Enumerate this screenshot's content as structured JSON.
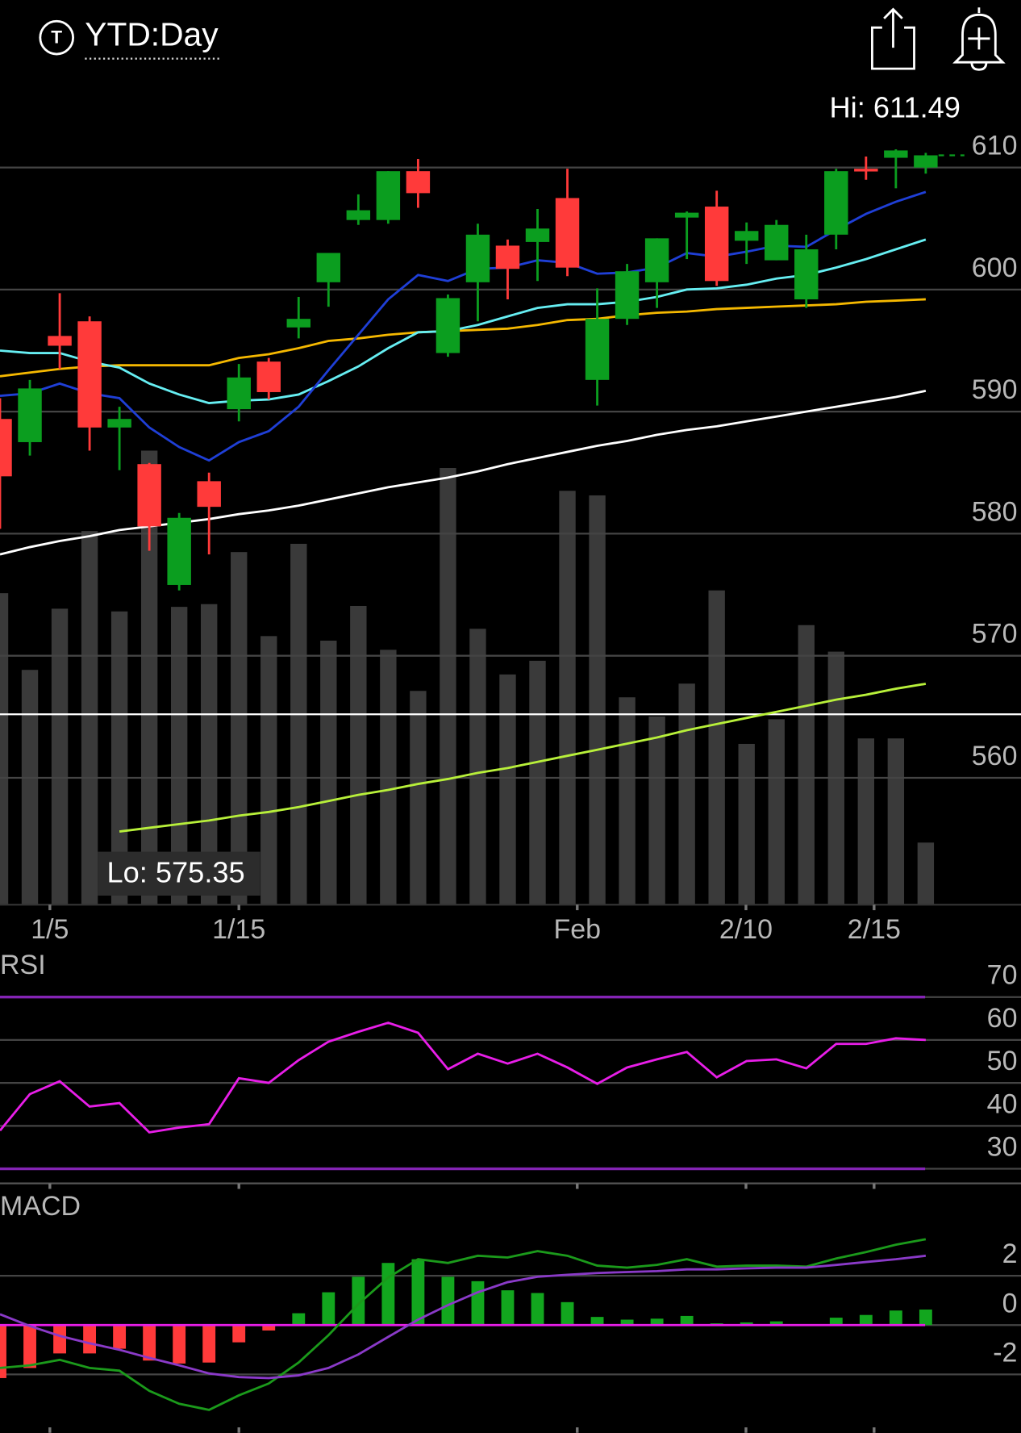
{
  "header": {
    "badge": "T",
    "period": "YTD:Day"
  },
  "chart_data": [
    {
      "type": "candlestick",
      "xlim": [
        0,
        34.19
      ],
      "xticks": [
        {
          "value": 1.67,
          "label": "1/5"
        },
        {
          "value": 8.0,
          "label": "1/15"
        },
        {
          "value": 19.33,
          "label": "Feb"
        },
        {
          "value": 24.98,
          "label": "2/10"
        },
        {
          "value": 29.27,
          "label": "2/15"
        }
      ],
      "ylim": [
        549.6,
        616.6
      ],
      "yticks": [
        560,
        570,
        580,
        590,
        600,
        610
      ],
      "up_color": "#0b9e1f",
      "down_color": "#ff3a3a",
      "open": [
        589.4,
        587.5,
        596.2,
        597.4,
        588.7,
        585.7,
        575.8,
        584.3,
        590.2,
        594.1,
        596.9,
        600.6,
        605.7,
        605.7,
        609.7,
        594.8,
        600.6,
        603.6,
        603.9,
        607.5,
        592.6,
        597.6,
        600.6,
        605.9,
        606.8,
        604.0,
        602.4,
        599.2,
        604.5,
        609.9,
        610.8,
        610.0
      ],
      "high": [
        591.1,
        592.6,
        599.7,
        597.8,
        590.4,
        585.8,
        581.7,
        585.0,
        593.9,
        594.4,
        599.4,
        603.0,
        607.8,
        609.7,
        610.7,
        599.6,
        605.4,
        604.1,
        606.6,
        609.9,
        600.1,
        602.1,
        604.2,
        606.4,
        608.1,
        605.5,
        605.7,
        604.5,
        609.9,
        610.9,
        611.49,
        611.2
      ],
      "low": [
        580.4,
        586.4,
        593.5,
        586.8,
        585.2,
        578.6,
        575.35,
        578.3,
        589.2,
        591.0,
        596.0,
        598.6,
        605.3,
        605.4,
        606.7,
        594.5,
        597.4,
        599.2,
        600.7,
        601.1,
        590.5,
        597.1,
        598.5,
        602.5,
        600.3,
        602.1,
        602.4,
        598.5,
        603.3,
        609.0,
        608.3,
        609.5
      ],
      "close": [
        584.7,
        591.9,
        595.4,
        588.7,
        589.4,
        580.6,
        581.3,
        582.2,
        592.8,
        591.6,
        597.6,
        603.0,
        606.5,
        609.7,
        607.9,
        599.3,
        604.5,
        601.7,
        605.0,
        601.8,
        597.6,
        601.5,
        604.2,
        606.3,
        600.7,
        604.8,
        605.3,
        603.3,
        609.7,
        609.7,
        611.4,
        611.0
      ],
      "overlays": [
        {
          "color": "#ffffff",
          "values": [
            578.3,
            578.9,
            579.4,
            579.8,
            580.3,
            580.6,
            580.9,
            581.2,
            581.6,
            581.9,
            582.3,
            582.8,
            583.3,
            583.8,
            584.2,
            584.6,
            585.1,
            585.7,
            586.2,
            586.7,
            587.2,
            587.6,
            588.1,
            588.5,
            588.8,
            589.2,
            589.6,
            590.0,
            590.4,
            590.8,
            591.2,
            591.7
          ]
        },
        {
          "color": "#b8f03a",
          "values": [
            null,
            null,
            null,
            null,
            555.6,
            555.9,
            556.2,
            556.5,
            556.9,
            557.2,
            557.6,
            558.1,
            558.6,
            559.0,
            559.5,
            559.9,
            560.4,
            560.8,
            561.3,
            561.8,
            562.3,
            562.8,
            563.3,
            563.9,
            564.4,
            564.9,
            565.4,
            565.9,
            566.4,
            566.8,
            567.3,
            567.7
          ]
        },
        {
          "color": "#f5b800",
          "values": [
            592.9,
            593.2,
            593.5,
            593.7,
            593.8,
            593.8,
            593.8,
            593.8,
            594.4,
            594.7,
            595.2,
            595.8,
            596.0,
            596.3,
            596.5,
            596.6,
            596.7,
            596.8,
            597.1,
            597.5,
            597.6,
            597.9,
            598.1,
            598.2,
            598.4,
            598.5,
            598.6,
            598.7,
            598.8,
            599.0,
            599.1,
            599.2
          ]
        },
        {
          "color": "#66eef2",
          "values": [
            595.0,
            594.8,
            594.8,
            594.1,
            593.6,
            592.3,
            591.4,
            590.7,
            590.9,
            591.0,
            591.4,
            592.5,
            593.7,
            595.2,
            596.5,
            596.6,
            597.1,
            597.8,
            598.5,
            598.8,
            598.8,
            599.0,
            599.4,
            600.0,
            600.1,
            600.4,
            600.9,
            601.2,
            601.8,
            602.5,
            603.3,
            604.1
          ]
        },
        {
          "color": "#1f3fd6",
          "values": [
            591.3,
            591.5,
            592.3,
            591.5,
            591.1,
            588.7,
            587.1,
            586.0,
            587.5,
            588.4,
            590.4,
            593.4,
            596.3,
            599.2,
            601.2,
            600.7,
            601.7,
            601.8,
            602.4,
            602.2,
            601.3,
            601.4,
            601.8,
            603.0,
            602.7,
            603.1,
            603.6,
            603.5,
            604.9,
            606.2,
            607.2,
            608.0
          ]
        }
      ],
      "reference_line": 565.2,
      "volume": {
        "color": "#3a3a3a",
        "ylim": [
          0,
          179
        ],
        "values": [
          68.2,
          51.4,
          64.8,
          81.8,
          64.2,
          99.4,
          65.2,
          65.8,
          77.2,
          58.8,
          79.0,
          57.8,
          65.4,
          55.8,
          46.8,
          95.6,
          60.4,
          50.4,
          53.4,
          90.6,
          89.6,
          45.4,
          41.2,
          48.4,
          68.8,
          35.2,
          40.6,
          61.2,
          55.4,
          36.4,
          36.4,
          13.6
        ]
      },
      "annotations": [
        {
          "text": "Hi: 611.49"
        },
        {
          "text": "Lo: 575.35"
        }
      ]
    },
    {
      "type": "line",
      "title": "RSI",
      "ylim": [
        26.6,
        79.8
      ],
      "yticks": [
        30,
        40,
        50,
        60,
        70
      ],
      "overbought": 70,
      "oversold": 30,
      "band_color": "#8424b4",
      "series": [
        {
          "color": "#e81ee8",
          "values": [
            38.9,
            47.4,
            50.4,
            44.5,
            45.3,
            38.5,
            39.6,
            40.4,
            51.1,
            50.0,
            55.3,
            59.6,
            61.9,
            64.0,
            61.7,
            53.2,
            56.8,
            54.5,
            56.8,
            53.6,
            49.8,
            53.6,
            55.5,
            57.2,
            51.3,
            55.1,
            55.5,
            53.4,
            59.1,
            59.1,
            60.4,
            60.0
          ]
        }
      ]
    },
    {
      "type": "macd",
      "title": "MACD",
      "ylim": [
        -4.37,
        5.19
      ],
      "yticks": [
        -2,
        0,
        2
      ],
      "zero_color": "#e81ee8",
      "series": [
        {
          "color": "#1b9a1b",
          "values": [
            -1.74,
            -1.63,
            -1.41,
            -1.74,
            -1.85,
            -2.67,
            -3.19,
            -3.44,
            -2.85,
            -2.37,
            -1.52,
            -0.41,
            0.85,
            1.93,
            2.67,
            2.52,
            2.81,
            2.74,
            3.0,
            2.81,
            2.41,
            2.33,
            2.44,
            2.67,
            2.37,
            2.41,
            2.41,
            2.37,
            2.7,
            2.96,
            3.26,
            3.48
          ]
        },
        {
          "color": "#8a3ac8",
          "values": [
            0.44,
            -0.04,
            -0.44,
            -0.74,
            -1.0,
            -1.33,
            -1.63,
            -1.96,
            -2.11,
            -2.15,
            -2.04,
            -1.74,
            -1.19,
            -0.48,
            0.22,
            0.81,
            1.33,
            1.74,
            1.96,
            2.04,
            2.11,
            2.15,
            2.19,
            2.26,
            2.26,
            2.3,
            2.33,
            2.33,
            2.44,
            2.56,
            2.67,
            2.81
          ]
        }
      ],
      "histogram": {
        "up_color": "#12a61e",
        "down_color": "#ff3a3a",
        "values": [
          -2.15,
          -1.74,
          -1.15,
          -1.15,
          -0.96,
          -1.44,
          -1.56,
          -1.52,
          -0.7,
          -0.22,
          0.48,
          1.33,
          1.96,
          2.52,
          2.67,
          1.96,
          1.78,
          1.41,
          1.3,
          0.93,
          0.33,
          0.22,
          0.26,
          0.37,
          0.07,
          0.11,
          0.15,
          0.02,
          0.3,
          0.41,
          0.59,
          0.63
        ]
      }
    }
  ]
}
